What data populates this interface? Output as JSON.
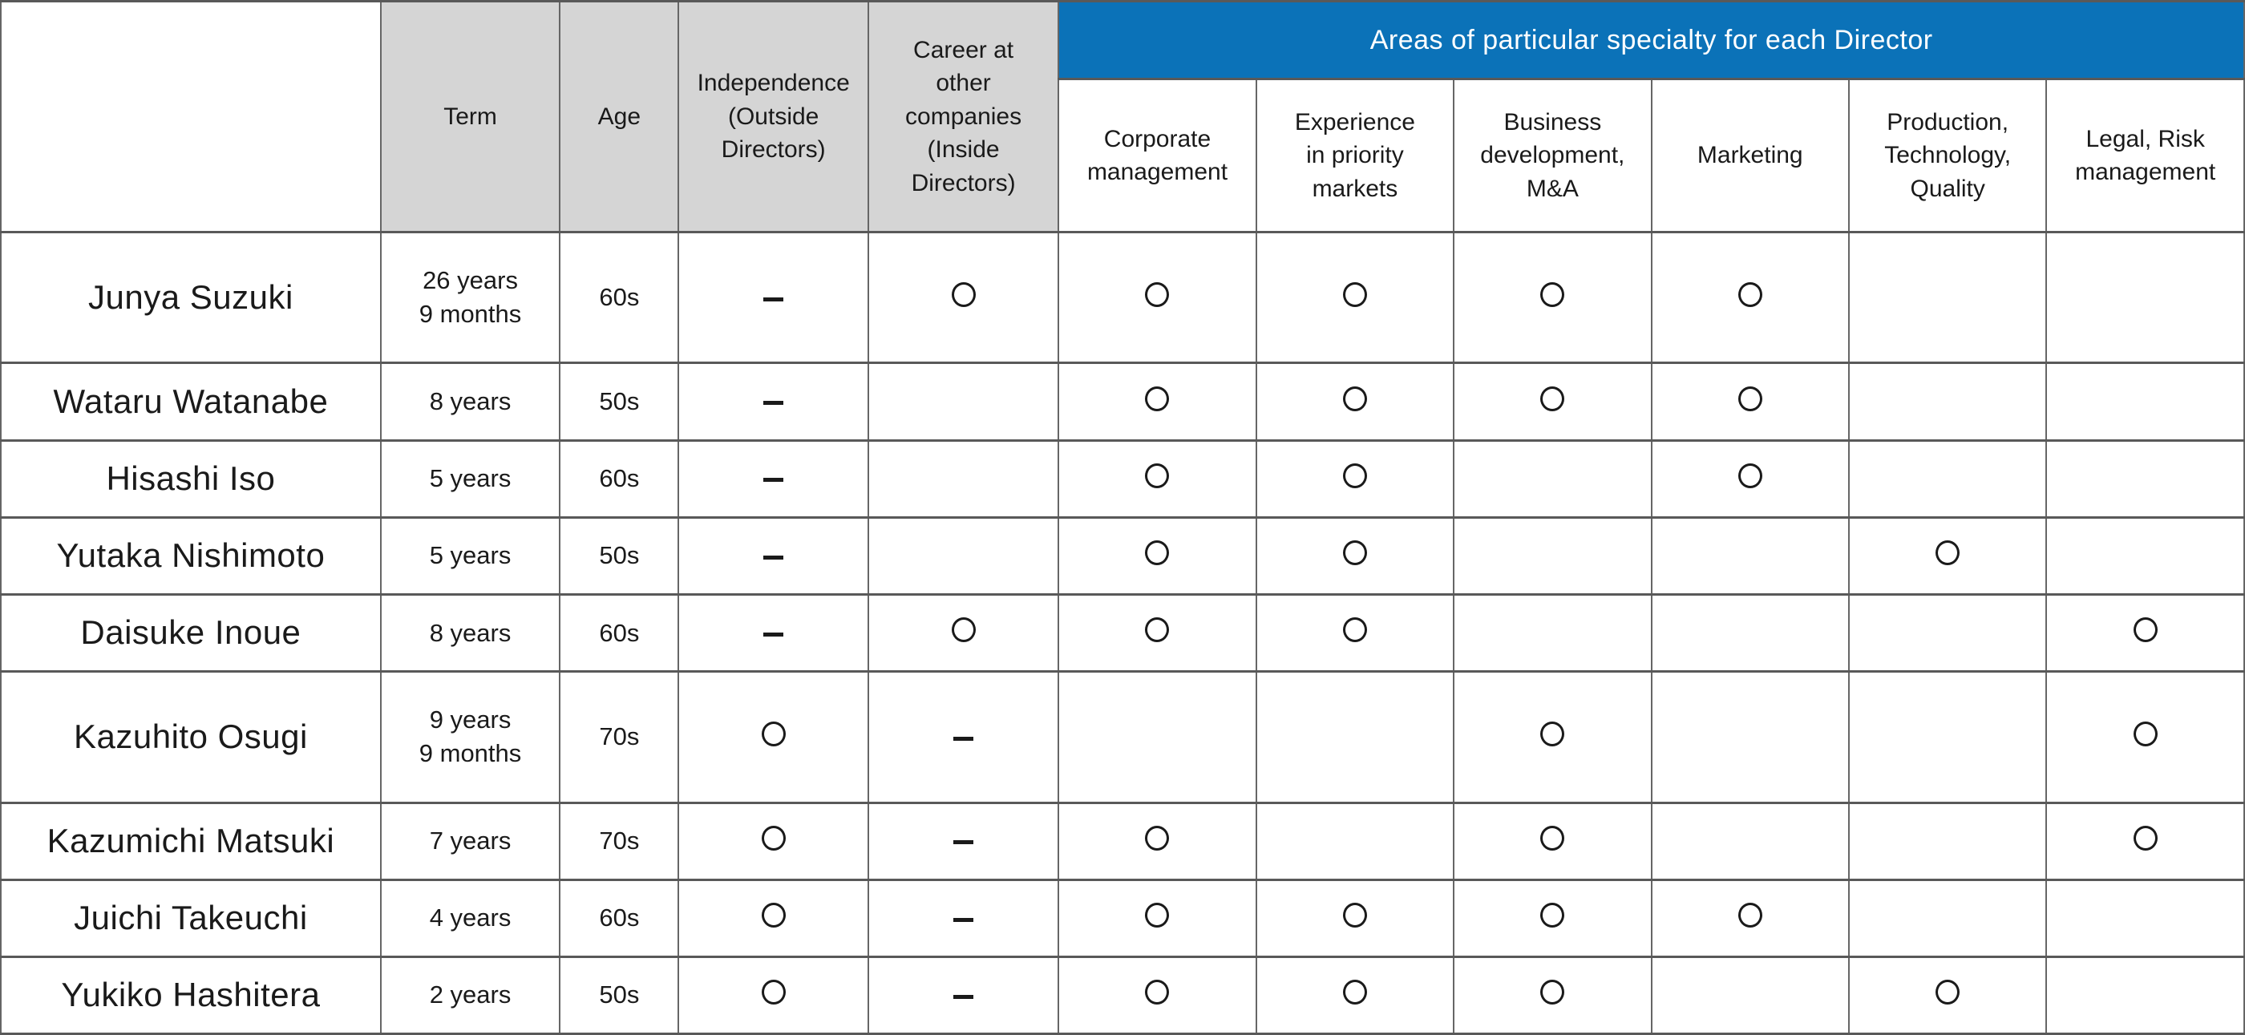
{
  "table": {
    "title_banner": "Areas of particular specialty for each Director",
    "header": {
      "name_column": "",
      "term": "Term",
      "age": "Age",
      "independence": "Independence\n(Outside\nDirectors)",
      "career": "Career at\nother\ncompanies\n(Inside\nDirectors)",
      "specialties": [
        "Corporate\nmanagement",
        "Experience\nin priority\nmarkets",
        "Business\ndevelopment,\nM&A",
        "Marketing",
        "Production,\nTechnology,\nQuality",
        "Legal, Risk\nmanagement"
      ]
    },
    "rows": [
      {
        "name": "Junya Suzuki",
        "term": "26 years\n9 months",
        "age": "60s",
        "independence": "dash",
        "career": "circle",
        "specialties": [
          "circle",
          "circle",
          "circle",
          "circle",
          "",
          ""
        ]
      },
      {
        "name": "Wataru Watanabe",
        "term": "8 years",
        "age": "50s",
        "independence": "dash",
        "career": "",
        "specialties": [
          "circle",
          "circle",
          "circle",
          "circle",
          "",
          ""
        ]
      },
      {
        "name": "Hisashi Iso",
        "term": "5 years",
        "age": "60s",
        "independence": "dash",
        "career": "",
        "specialties": [
          "circle",
          "circle",
          "",
          "circle",
          "",
          ""
        ]
      },
      {
        "name": "Yutaka Nishimoto",
        "term": "5 years",
        "age": "50s",
        "independence": "dash",
        "career": "",
        "specialties": [
          "circle",
          "circle",
          "",
          "",
          "circle",
          ""
        ]
      },
      {
        "name": "Daisuke Inoue",
        "term": "8 years",
        "age": "60s",
        "independence": "dash",
        "career": "circle",
        "specialties": [
          "circle",
          "circle",
          "",
          "",
          "",
          "circle"
        ]
      },
      {
        "name": "Kazuhito Osugi",
        "term": "9 years\n9 months",
        "age": "70s",
        "independence": "circle",
        "career": "dash",
        "specialties": [
          "",
          "",
          "circle",
          "",
          "",
          "circle"
        ]
      },
      {
        "name": "Kazumichi Matsuki",
        "term": "7 years",
        "age": "70s",
        "independence": "circle",
        "career": "dash",
        "specialties": [
          "circle",
          "",
          "circle",
          "",
          "",
          "circle"
        ]
      },
      {
        "name": "Juichi Takeuchi",
        "term": "4 years",
        "age": "60s",
        "independence": "circle",
        "career": "dash",
        "specialties": [
          "circle",
          "circle",
          "circle",
          "circle",
          "",
          ""
        ]
      },
      {
        "name": "Yukiko Hashitera",
        "term": "2 years",
        "age": "50s",
        "independence": "circle",
        "career": "dash",
        "specialties": [
          "circle",
          "circle",
          "circle",
          "",
          "circle",
          ""
        ]
      }
    ]
  },
  "colors": {
    "banner_blue": "#0b72b8",
    "header_grey": "#d5d5d5",
    "text": "#1a1a1a",
    "border_horizontal": "#595959",
    "border_vertical": "#666666"
  }
}
